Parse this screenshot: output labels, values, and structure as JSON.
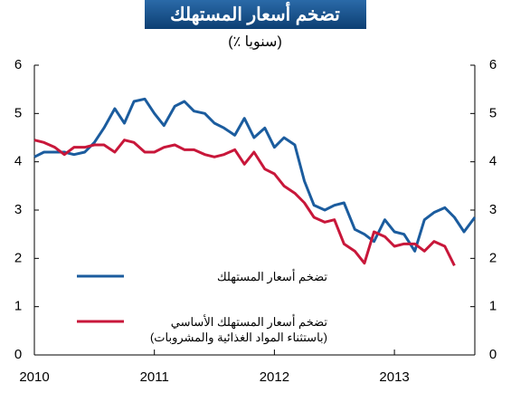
{
  "chart_data": {
    "type": "line",
    "title": "تضخم أسعار المستهلك",
    "subtitle": "(٪ سنويا)",
    "x": [
      2010,
      2010.08,
      2010.17,
      2010.25,
      2010.33,
      2010.42,
      2010.5,
      2010.58,
      2010.67,
      2010.75,
      2010.83,
      2010.92,
      2011,
      2011.08,
      2011.17,
      2011.25,
      2011.33,
      2011.42,
      2011.5,
      2011.58,
      2011.67,
      2011.75,
      2011.83,
      2011.92,
      2012,
      2012.08,
      2012.17,
      2012.25,
      2012.33,
      2012.42,
      2012.5,
      2012.58,
      2012.67,
      2012.75,
      2012.83,
      2012.92,
      2013,
      2013.08,
      2013.17,
      2013.25,
      2013.33,
      2013.42,
      2013.5,
      2013.58,
      2013.67
    ],
    "series": [
      {
        "name": "تضخم أسعار المستهلك",
        "color": "#1b5c9e",
        "values": [
          4.1,
          4.2,
          4.2,
          4.2,
          4.15,
          4.2,
          4.4,
          4.7,
          5.1,
          4.8,
          5.25,
          5.3,
          5.0,
          4.75,
          5.15,
          5.25,
          5.05,
          5.0,
          4.8,
          4.7,
          4.55,
          4.9,
          4.5,
          4.7,
          4.3,
          4.5,
          4.35,
          3.6,
          3.1,
          3.0,
          3.1,
          3.15,
          2.6,
          2.5,
          2.35,
          2.8,
          2.55,
          2.5,
          2.15,
          2.8,
          2.95,
          3.05,
          2.85,
          2.55,
          2.85
        ]
      },
      {
        "name": "تضخم أسعار المستهلك الأساسي (باستثناء المواد الغذائية والمشروبات)",
        "color": "#c8173a",
        "values": [
          4.45,
          4.4,
          4.3,
          4.15,
          4.3,
          4.3,
          4.35,
          4.35,
          4.2,
          4.45,
          4.4,
          4.2,
          4.2,
          4.3,
          4.35,
          4.25,
          4.25,
          4.15,
          4.1,
          4.15,
          4.25,
          3.95,
          4.2,
          3.85,
          3.75,
          3.5,
          3.35,
          3.15,
          2.85,
          2.75,
          2.8,
          2.3,
          2.15,
          1.9,
          2.55,
          2.45,
          2.25,
          2.3,
          2.3,
          2.15,
          2.35,
          2.25,
          1.85,
          null,
          null
        ]
      }
    ],
    "xlim": [
      2010,
      2013.67
    ],
    "xticks": [
      2010,
      2011,
      2012,
      2013
    ],
    "ylim": [
      0,
      6
    ],
    "yticks": [
      0,
      1,
      2,
      3,
      4,
      5,
      6
    ],
    "y2lim": [
      0,
      6
    ],
    "y2ticks": [
      0,
      1,
      2,
      3,
      4,
      5,
      6
    ]
  }
}
